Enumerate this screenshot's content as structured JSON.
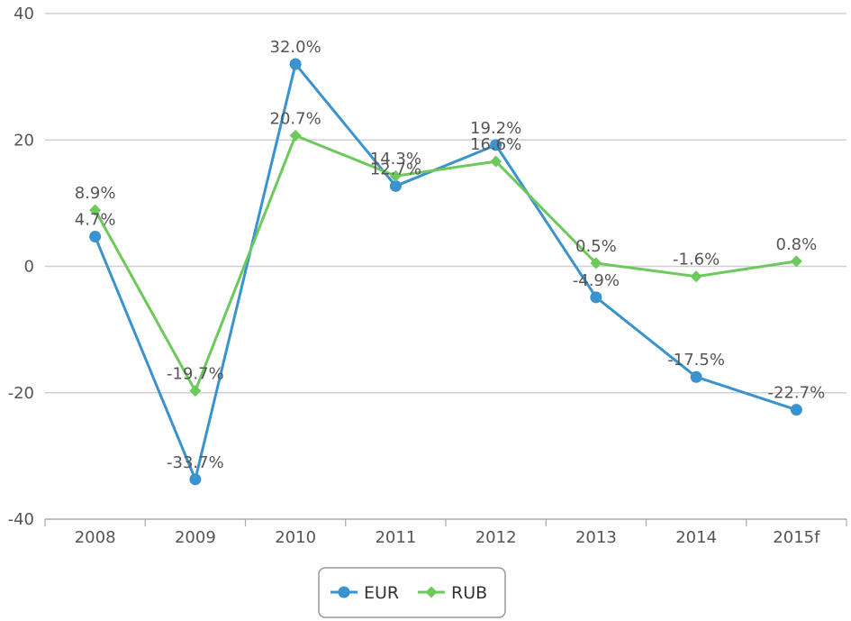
{
  "chart_data": {
    "type": "line",
    "categories": [
      "2008",
      "2009",
      "2010",
      "2011",
      "2012",
      "2013",
      "2014",
      "2015f"
    ],
    "series": [
      {
        "name": "EUR",
        "color": "#3a92cf",
        "marker": "circle",
        "values": [
          4.7,
          -33.7,
          32.0,
          12.7,
          19.2,
          -4.9,
          -17.5,
          -22.7
        ],
        "labels": [
          "4.7%",
          "-33.7%",
          "32.0%",
          "12.7%",
          "19.2%",
          "-4.9%",
          "-17.5%",
          "-22.7%"
        ]
      },
      {
        "name": "RUB",
        "color": "#6cc95b",
        "marker": "diamond",
        "values": [
          8.9,
          -19.7,
          20.7,
          14.3,
          16.6,
          0.5,
          -1.6,
          0.8
        ],
        "labels": [
          "8.9%",
          "-19.7%",
          "20.7%",
          "14.3%",
          "16.6%",
          "0.5%",
          "-1.6%",
          "0.8%"
        ]
      }
    ],
    "yticks": [
      "40",
      "20",
      "0",
      "-20",
      "-40"
    ],
    "ylim": [
      -40,
      40
    ],
    "grid": true,
    "legend_position": "bottom-center",
    "title": "",
    "xlabel": "",
    "ylabel": ""
  }
}
